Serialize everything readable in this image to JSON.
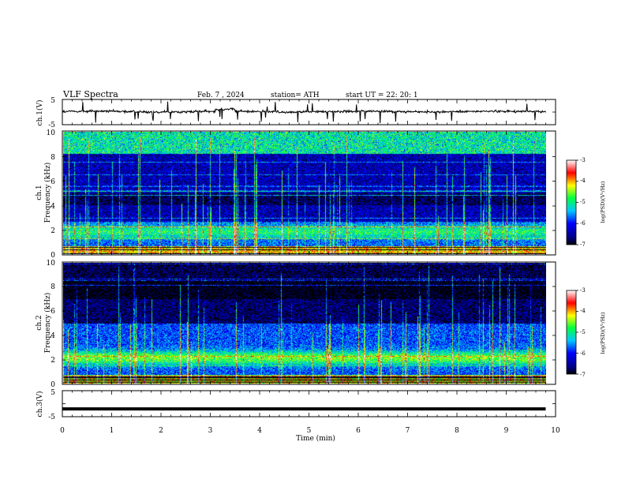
{
  "header": {
    "title": "VLF  Spectra",
    "date": "Feb. 7  , 2024",
    "station": "station= ATH",
    "start": "start  UT  =    22: 20: 1"
  },
  "chart_data": [
    {
      "type": "line",
      "ylabel": "ch.1(V)",
      "ylim": [
        -5,
        5
      ],
      "yticks": [
        "5",
        "-5"
      ],
      "x_range_min": [
        0,
        9.8
      ],
      "baseline_V": 0.2,
      "noise_amplitude_V": 1.0
    },
    {
      "type": "heatmap",
      "ylabel": "ch.1\nFrequency  (kHz)",
      "ylim": [
        0,
        10
      ],
      "yticks": [
        "0",
        "2",
        "4",
        "6",
        "8",
        "10"
      ],
      "colorbar": {
        "label": "log(PSD)(V²/Hz)",
        "ticks": [
          "-3",
          "-4",
          "-5",
          "-6",
          "-7"
        ],
        "range": [
          -7,
          -3
        ]
      }
    },
    {
      "type": "heatmap",
      "ylabel": "ch.2\nFrequency  (kHz)",
      "ylim": [
        0,
        10
      ],
      "yticks": [
        "0",
        "2",
        "4",
        "6",
        "8",
        "10"
      ],
      "colorbar": {
        "label": "log(PSD)(V²/Hz)",
        "ticks": [
          "-3",
          "-4",
          "-5",
          "-6",
          "-7"
        ],
        "range": [
          -7,
          -3
        ]
      }
    },
    {
      "type": "line",
      "ylabel": "ch.3(V)",
      "ylim": [
        -5,
        5
      ],
      "yticks": [
        "5",
        "-5"
      ],
      "x_range_min": [
        0,
        9.8
      ],
      "baseline_V": -2.0
    }
  ],
  "xaxis": {
    "label": "Time  (min)",
    "ticks": [
      "0",
      "1",
      "2",
      "3",
      "4",
      "5",
      "6",
      "7",
      "8",
      "9",
      "10"
    ],
    "xlim": [
      0,
      10
    ]
  }
}
